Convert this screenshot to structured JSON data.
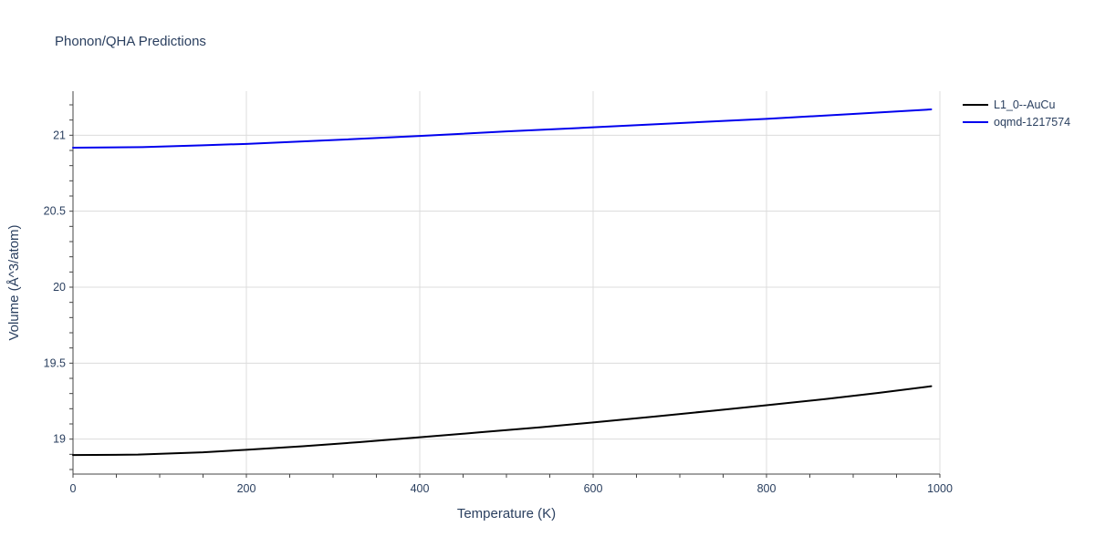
{
  "chart_data": {
    "type": "line",
    "title": "Phonon/QHA Predictions",
    "xlabel": "Temperature (K)",
    "ylabel": "Volume (Å^3/atom)",
    "xlim": [
      0,
      1000
    ],
    "ylim": [
      18.77,
      21.29
    ],
    "x_ticks": [
      0,
      200,
      400,
      600,
      800,
      1000
    ],
    "x_tick_labels": [
      "0",
      "200",
      "400",
      "600",
      "800",
      "1000"
    ],
    "y_ticks": [
      19,
      19.5,
      20,
      20.5,
      21
    ],
    "y_tick_labels": [
      "19",
      "19.5",
      "20",
      "20.5",
      "21"
    ],
    "grid": true,
    "legend_position": "top-right",
    "series": [
      {
        "name": "L1_0--AuCu",
        "color": "#000000",
        "x": [
          0,
          75,
          150,
          200,
          265,
          330,
          400,
          470,
          540,
          600,
          670,
          740,
          800,
          870,
          930,
          990
        ],
        "y": [
          18.895,
          18.898,
          18.913,
          18.93,
          18.953,
          18.98,
          19.012,
          19.045,
          19.078,
          19.11,
          19.148,
          19.188,
          19.223,
          19.265,
          19.305,
          19.348
        ]
      },
      {
        "name": "oqmd-1217574",
        "color": "#0000ee",
        "x": [
          0,
          80,
          150,
          200,
          300,
          400,
          500,
          600,
          700,
          800,
          900,
          990
        ],
        "y": [
          20.918,
          20.922,
          20.934,
          20.943,
          20.968,
          20.995,
          21.025,
          21.052,
          21.08,
          21.108,
          21.14,
          21.17
        ]
      }
    ]
  }
}
